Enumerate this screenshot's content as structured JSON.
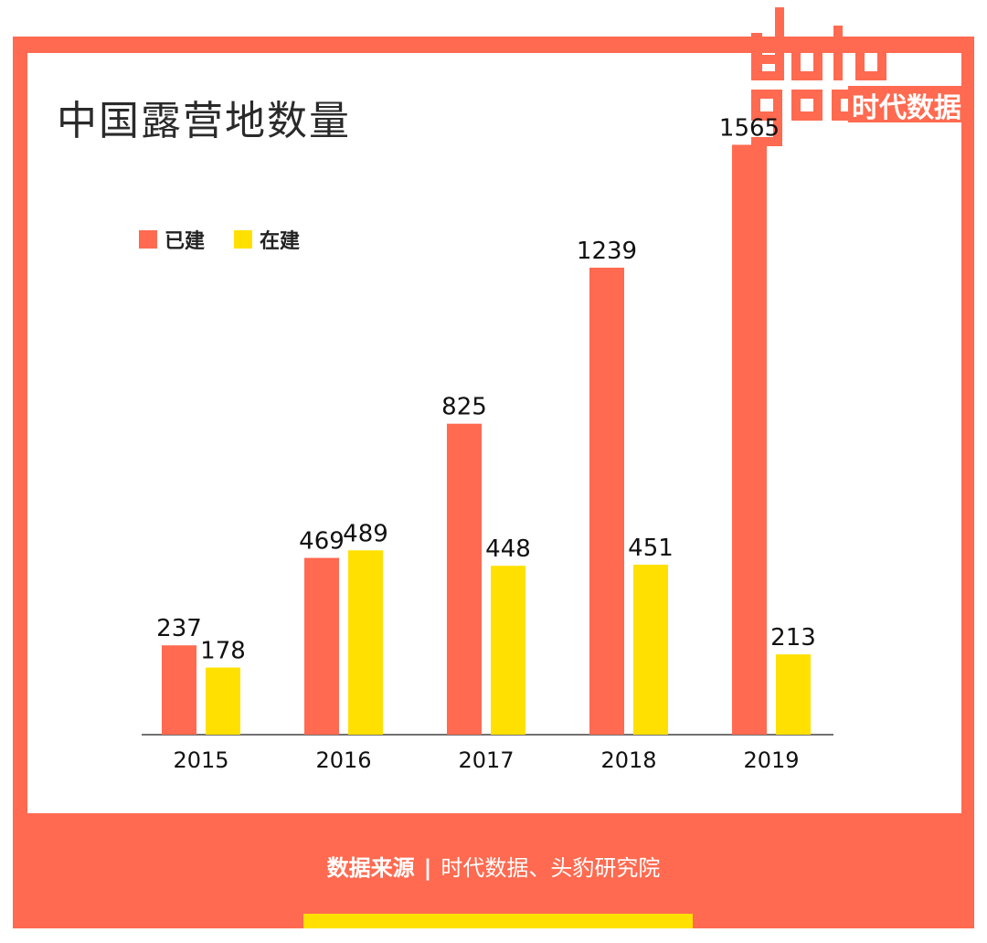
{
  "brand": {
    "logo_text": "data good",
    "logo_cn": "时代数据",
    "colors": {
      "frame": "#FF6A50",
      "built": "#FF6A50",
      "building": "#FFE000",
      "strip": "#FFE000"
    }
  },
  "chart_data": {
    "type": "bar",
    "title": "中国露营地数量",
    "categories": [
      "2015",
      "2016",
      "2017",
      "2018",
      "2019"
    ],
    "series": [
      {
        "name": "已建",
        "color": "#FF6A50",
        "values": [
          237,
          469,
          825,
          1239,
          1565
        ]
      },
      {
        "name": "在建",
        "color": "#FFE000",
        "values": [
          178,
          489,
          448,
          451,
          213
        ]
      }
    ],
    "ylim": [
      0,
      1600
    ],
    "grid": false,
    "legend_position": "top-left",
    "xlabel": "",
    "ylabel": ""
  },
  "source": {
    "label": "数据来源",
    "separator": "|",
    "text": "时代数据、头豹研究院"
  }
}
